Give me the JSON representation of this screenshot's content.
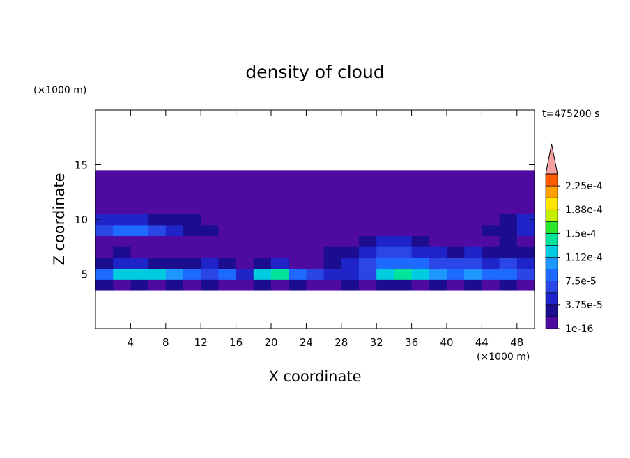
{
  "chart_data": {
    "type": "contour",
    "title": "density of cloud",
    "x_label": "X coordinate",
    "y_label": "Z coordinate",
    "x_unit": "(×1000 m)",
    "y_unit": "(×1000 m)",
    "time_label": "t=475200 s",
    "xlim": [
      0,
      50
    ],
    "ylim": [
      0,
      20
    ],
    "xticks": [
      4,
      8,
      12,
      16,
      20,
      24,
      28,
      32,
      36,
      40,
      44,
      48
    ],
    "yticks": [
      5,
      10,
      15
    ],
    "x": [
      1,
      3,
      5,
      7,
      9,
      11,
      13,
      15,
      17,
      19,
      21,
      23,
      25,
      27,
      29,
      31,
      33,
      35,
      37,
      39,
      41,
      43,
      45,
      47,
      49
    ],
    "y": [
      4,
      5,
      6,
      7,
      8,
      9,
      10,
      11,
      12,
      13,
      14
    ],
    "z": [
      [
        2.5e-05,
        1e-05,
        2.5e-05,
        1e-05,
        2.5e-05,
        1e-05,
        2.5e-05,
        1e-05,
        1e-05,
        2.5e-05,
        1e-05,
        2.5e-05,
        1e-05,
        1e-05,
        2.5e-05,
        1e-05,
        2.5e-05,
        2.5e-05,
        1e-05,
        2.5e-05,
        1e-05,
        2.5e-05,
        1e-05,
        2.5e-05,
        1e-05
      ],
      [
        8.5e-05,
        0.00012,
        0.00012,
        0.00012,
        0.0001,
        8.5e-05,
        6.5e-05,
        8.5e-05,
        4.5e-05,
        0.00012,
        0.00014,
        8.5e-05,
        6.5e-05,
        4.5e-05,
        4.5e-05,
        6.5e-05,
        0.00012,
        0.00014,
        0.00012,
        0.0001,
        8.5e-05,
        0.0001,
        8.5e-05,
        8.5e-05,
        6.5e-05
      ],
      [
        2.5e-05,
        4.5e-05,
        4.5e-05,
        2.5e-05,
        2.5e-05,
        2.5e-05,
        4.5e-05,
        2.5e-05,
        1e-05,
        2.5e-05,
        4.5e-05,
        1e-05,
        1e-05,
        2.5e-05,
        4.5e-05,
        6.5e-05,
        8.5e-05,
        8.5e-05,
        8.5e-05,
        6.5e-05,
        6.5e-05,
        6.5e-05,
        4.5e-05,
        6.5e-05,
        4.5e-05
      ],
      [
        1e-05,
        2.5e-05,
        1e-05,
        1e-05,
        1e-05,
        1e-05,
        1e-05,
        1e-05,
        1e-05,
        1e-05,
        1e-05,
        1e-05,
        1e-05,
        2.5e-05,
        2.5e-05,
        4.5e-05,
        6.5e-05,
        6.5e-05,
        4.5e-05,
        4.5e-05,
        2.5e-05,
        4.5e-05,
        2.5e-05,
        2.5e-05,
        2.5e-05
      ],
      [
        1e-05,
        1e-05,
        1e-05,
        1e-05,
        1e-05,
        1e-05,
        1e-05,
        1e-05,
        1e-05,
        1e-05,
        1e-05,
        1e-05,
        1e-05,
        1e-05,
        1e-05,
        2.5e-05,
        4.5e-05,
        4.5e-05,
        2.5e-05,
        1e-05,
        1e-05,
        1e-05,
        1e-05,
        2.5e-05,
        1e-05
      ],
      [
        6.5e-05,
        8.5e-05,
        8.5e-05,
        6.5e-05,
        4.5e-05,
        2.5e-05,
        2.5e-05,
        1e-05,
        1e-05,
        1e-05,
        1e-05,
        1e-05,
        1e-05,
        1e-05,
        1e-05,
        1e-05,
        1e-05,
        1e-05,
        1e-05,
        1e-05,
        1e-05,
        1e-05,
        2.5e-05,
        2.5e-05,
        4.5e-05
      ],
      [
        4.5e-05,
        4.5e-05,
        4.5e-05,
        2.5e-05,
        2.5e-05,
        2.5e-05,
        1e-05,
        1e-05,
        1e-05,
        1e-05,
        1e-05,
        1e-05,
        1e-05,
        1e-05,
        1e-05,
        1e-05,
        1e-05,
        1e-05,
        1e-05,
        1e-05,
        1e-05,
        1e-05,
        1e-05,
        2.5e-05,
        4.5e-05
      ],
      [
        1e-05,
        1e-05,
        1e-05,
        1e-05,
        1e-05,
        1e-05,
        1e-05,
        1e-05,
        1e-05,
        1e-05,
        1e-05,
        1e-05,
        1e-05,
        1e-05,
        1e-05,
        1e-05,
        1e-05,
        1e-05,
        1e-05,
        1e-05,
        1e-05,
        1e-05,
        1e-05,
        1e-05,
        1e-05
      ],
      [
        1e-05,
        1e-05,
        1e-05,
        1e-05,
        1e-05,
        1e-05,
        1e-05,
        1e-05,
        1e-05,
        1e-05,
        1e-05,
        1e-05,
        1e-05,
        1e-05,
        1e-05,
        1e-05,
        1e-05,
        1e-05,
        1e-05,
        1e-05,
        1e-05,
        1e-05,
        1e-05,
        1e-05,
        1e-05
      ],
      [
        1e-05,
        1e-05,
        1e-05,
        1e-05,
        1e-05,
        1e-05,
        1e-05,
        1e-05,
        1e-05,
        1e-05,
        1e-05,
        1e-05,
        1e-05,
        1e-05,
        1e-05,
        1e-05,
        1e-05,
        1e-05,
        1e-05,
        1e-05,
        1e-05,
        1e-05,
        1e-05,
        1e-05,
        1e-05
      ],
      [
        1e-05,
        1e-05,
        1e-05,
        1e-05,
        1e-05,
        1e-05,
        1e-05,
        1e-05,
        1e-05,
        1e-05,
        1e-05,
        1e-05,
        1e-05,
        1e-05,
        1e-05,
        1e-05,
        1e-05,
        1e-05,
        1e-05,
        1e-05,
        1e-05,
        1e-05,
        1e-05,
        1e-05,
        1e-05
      ]
    ],
    "levels": [
      1e-16,
      1.875e-05,
      3.75e-05,
      5.625e-05,
      7.5e-05,
      9.375e-05,
      0.0001125,
      0.00013125,
      0.00015,
      0.00016875,
      0.0001875,
      0.00020625,
      0.000225,
      0.00024375
    ],
    "level_colors": [
      "#4f0aa2",
      "#1c0c8e",
      "#1f24c8",
      "#2a46e6",
      "#1e6aff",
      "#1e98ff",
      "#00cce0",
      "#00e49c",
      "#2ae62a",
      "#c4f000",
      "#ffe600",
      "#ffa000",
      "#ff5a00",
      "#e81e1e"
    ],
    "extend_color": "#f2a0a0",
    "colorbar_ticks": [
      {
        "value": 1e-16,
        "label": "1e-16"
      },
      {
        "value": 3.75e-05,
        "label": "3.75e-5"
      },
      {
        "value": 7.5e-05,
        "label": "7.5e-5"
      },
      {
        "value": 0.0001125,
        "label": "1.12e-4"
      },
      {
        "value": 0.00015,
        "label": "1.5e-4"
      },
      {
        "value": 0.0001875,
        "label": "1.88e-4"
      },
      {
        "value": 0.000225,
        "label": "2.25e-4"
      }
    ]
  }
}
